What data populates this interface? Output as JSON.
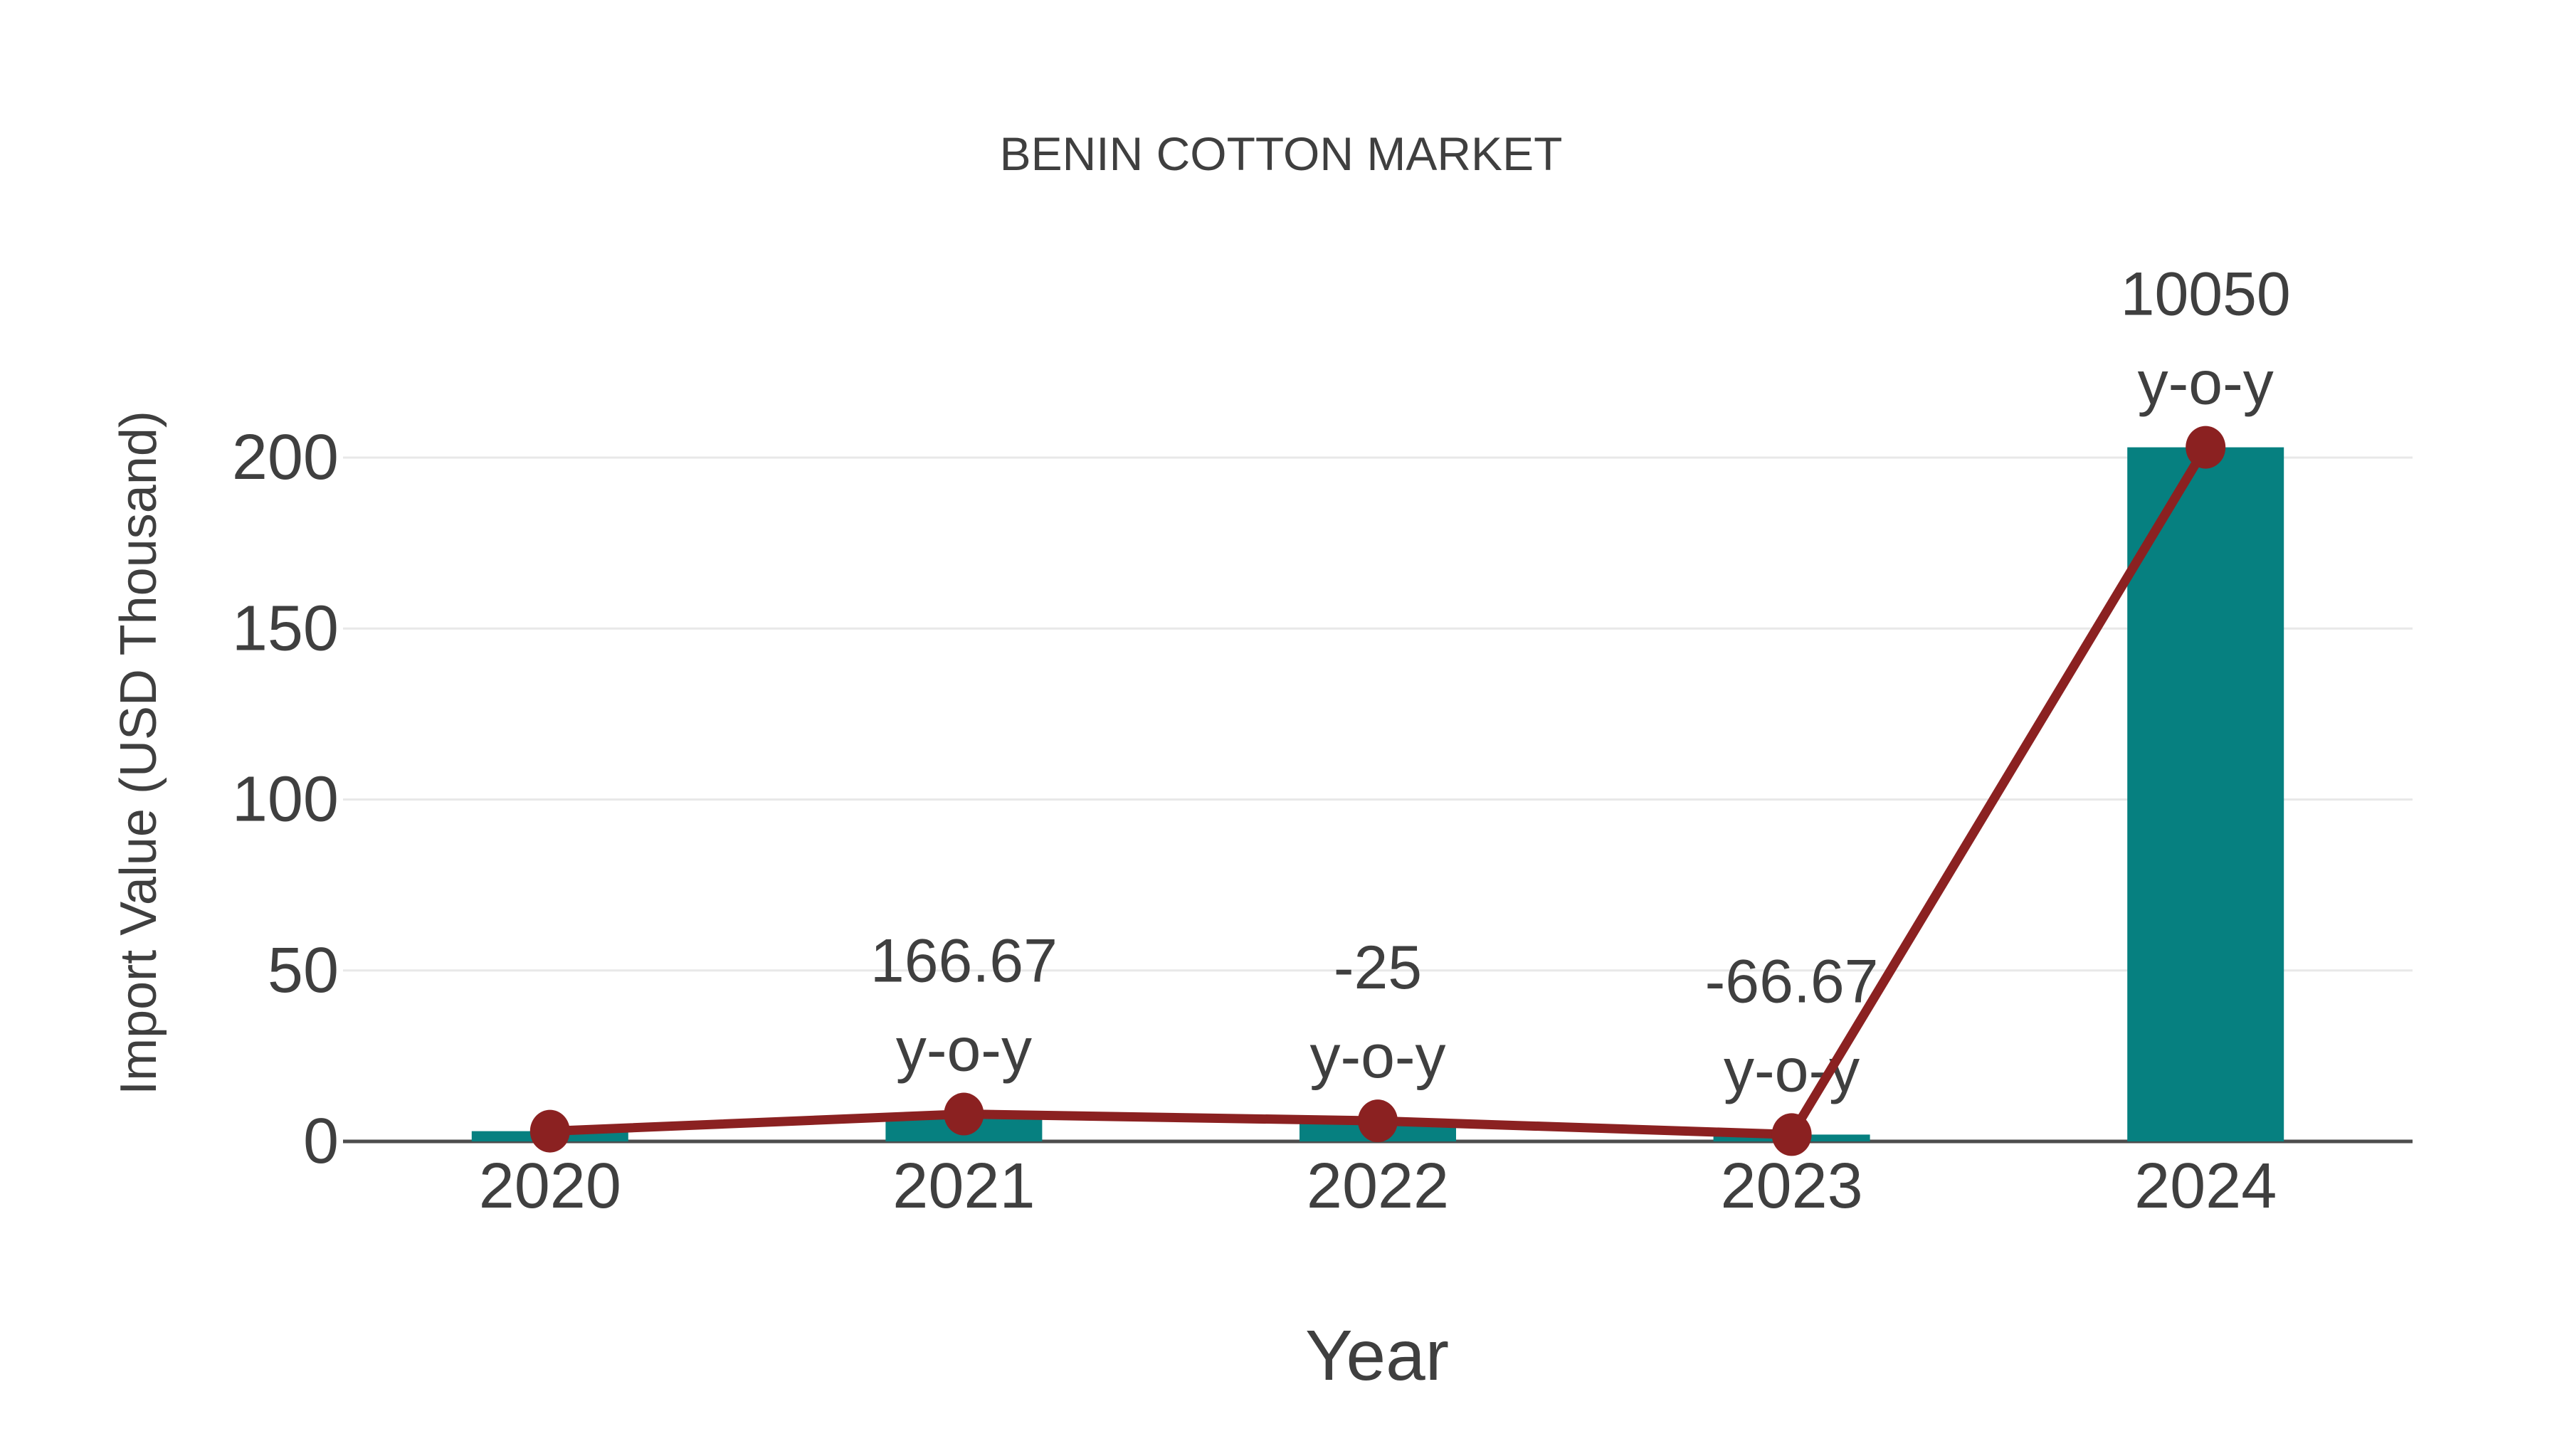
{
  "page": {
    "background": "#ffffff"
  },
  "chart_data": {
    "type": "bar",
    "subtype": "bar+line-combo",
    "title": "BENIN COTTON MARKET",
    "xlabel": "Year",
    "ylabel": "Import Value (USD Thousand)",
    "categories": [
      "2020",
      "2021",
      "2022",
      "2023",
      "2024"
    ],
    "series": [
      {
        "name": "Import Value bars",
        "type": "bar",
        "color": "#068080",
        "values": [
          3,
          8,
          6,
          2,
          203
        ]
      },
      {
        "name": "Import Value line",
        "type": "line",
        "color": "#8b2121",
        "values": [
          3,
          8,
          6,
          2,
          203
        ]
      }
    ],
    "yticks": [
      0,
      50,
      100,
      150,
      200
    ],
    "ylim": [
      0,
      210
    ],
    "grid": true,
    "legend": false,
    "annotations": [
      {
        "category": "2021",
        "value_line": "166.67",
        "label_line": "y-o-y"
      },
      {
        "category": "2022",
        "value_line": "-25",
        "label_line": "y-o-y"
      },
      {
        "category": "2023",
        "value_line": "-66.67",
        "label_line": "y-o-y"
      },
      {
        "category": "2024",
        "value_line": "10050",
        "label_line": "y-o-y"
      }
    ],
    "colors": {
      "bar": "#068080",
      "line": "#8b2121",
      "marker": "#8b2121",
      "grid": "#e8e8e8",
      "axis_line": "#4d4d4d",
      "text": "#3f3f3f",
      "background": "#ffffff"
    }
  }
}
